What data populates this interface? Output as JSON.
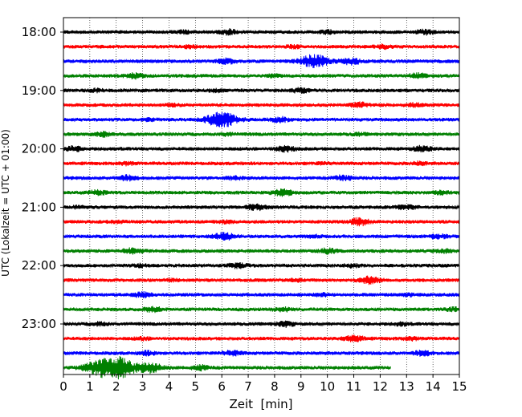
{
  "chart_data": {
    "type": "line",
    "title": "",
    "xlabel": "Zeit  [min]",
    "ylabel": "UTC (Lokalzeit = UTC + 01:00)",
    "xlim": [
      0,
      15
    ],
    "x_ticks": [
      0,
      1,
      2,
      3,
      4,
      5,
      6,
      7,
      8,
      9,
      10,
      11,
      12,
      13,
      14,
      15
    ],
    "y_ticks": [
      "18:00",
      "19:00",
      "20:00",
      "21:00",
      "22:00",
      "23:00"
    ],
    "grid": "vertical dotted at each minute",
    "trace_interval_minutes": 15,
    "trace_colors": [
      "#000000",
      "#ff0000",
      "#0000ff",
      "#008000"
    ],
    "series": [
      {
        "start": "18:00",
        "color": "#000000",
        "bursts": [
          {
            "t": 6.3,
            "a": 0.6
          },
          {
            "t": 13.7,
            "a": 0.6
          },
          {
            "t": 10.0,
            "a": 0.4
          },
          {
            "t": 4.6,
            "a": 0.35
          }
        ]
      },
      {
        "start": "18:15",
        "color": "#ff0000",
        "bursts": [
          {
            "t": 12.1,
            "a": 0.45
          },
          {
            "t": 8.7,
            "a": 0.3
          },
          {
            "t": 4.8,
            "a": 0.3
          }
        ]
      },
      {
        "start": "18:30",
        "color": "#0000ff",
        "bursts": [
          {
            "t": 9.5,
            "a": 1.7
          },
          {
            "t": 10.9,
            "a": 0.8
          },
          {
            "t": 6.2,
            "a": 0.7
          }
        ]
      },
      {
        "start": "18:45",
        "color": "#008000",
        "bursts": [
          {
            "t": 2.7,
            "a": 0.6
          },
          {
            "t": 13.4,
            "a": 0.6
          },
          {
            "t": 8.0,
            "a": 0.3
          }
        ]
      },
      {
        "start": "19:00",
        "color": "#000000",
        "bursts": [
          {
            "t": 9.0,
            "a": 0.6
          },
          {
            "t": 5.8,
            "a": 0.3
          },
          {
            "t": 1.2,
            "a": 0.35
          }
        ]
      },
      {
        "start": "19:15",
        "color": "#ff0000",
        "bursts": [
          {
            "t": 11.2,
            "a": 0.6
          },
          {
            "t": 13.3,
            "a": 0.4
          },
          {
            "t": 4.1,
            "a": 0.3
          }
        ]
      },
      {
        "start": "19:30",
        "color": "#0000ff",
        "bursts": [
          {
            "t": 6.0,
            "a": 2.0
          },
          {
            "t": 8.2,
            "a": 0.6
          },
          {
            "t": 3.2,
            "a": 0.3
          }
        ]
      },
      {
        "start": "19:45",
        "color": "#008000",
        "bursts": [
          {
            "t": 1.5,
            "a": 0.5
          },
          {
            "t": 6.2,
            "a": 0.3
          },
          {
            "t": 11.2,
            "a": 0.3
          }
        ]
      },
      {
        "start": "20:00",
        "color": "#000000",
        "bursts": [
          {
            "t": 0.4,
            "a": 0.6
          },
          {
            "t": 8.4,
            "a": 0.7
          },
          {
            "t": 13.6,
            "a": 0.7
          }
        ]
      },
      {
        "start": "20:15",
        "color": "#ff0000",
        "bursts": [
          {
            "t": 2.4,
            "a": 0.35
          },
          {
            "t": 13.5,
            "a": 0.35
          },
          {
            "t": 9.8,
            "a": 0.2
          }
        ]
      },
      {
        "start": "20:30",
        "color": "#0000ff",
        "bursts": [
          {
            "t": 2.4,
            "a": 0.6
          },
          {
            "t": 10.6,
            "a": 0.6
          },
          {
            "t": 6.5,
            "a": 0.35
          }
        ]
      },
      {
        "start": "20:45",
        "color": "#008000",
        "bursts": [
          {
            "t": 1.3,
            "a": 0.6
          },
          {
            "t": 8.3,
            "a": 0.8
          },
          {
            "t": 14.3,
            "a": 0.4
          }
        ]
      },
      {
        "start": "21:00",
        "color": "#000000",
        "bursts": [
          {
            "t": 7.3,
            "a": 0.7
          },
          {
            "t": 13.0,
            "a": 0.6
          },
          {
            "t": 0.6,
            "a": 0.3
          }
        ]
      },
      {
        "start": "21:15",
        "color": "#ff0000",
        "bursts": [
          {
            "t": 11.2,
            "a": 0.9
          },
          {
            "t": 6.2,
            "a": 0.3
          },
          {
            "t": 2.0,
            "a": 0.25
          }
        ]
      },
      {
        "start": "21:30",
        "color": "#0000ff",
        "bursts": [
          {
            "t": 6.1,
            "a": 0.9
          },
          {
            "t": 14.2,
            "a": 0.5
          },
          {
            "t": 9.5,
            "a": 0.3
          }
        ]
      },
      {
        "start": "21:45",
        "color": "#008000",
        "bursts": [
          {
            "t": 2.6,
            "a": 0.7
          },
          {
            "t": 10.0,
            "a": 0.6
          },
          {
            "t": 14.4,
            "a": 0.4
          }
        ]
      },
      {
        "start": "22:00",
        "color": "#000000",
        "bursts": [
          {
            "t": 6.6,
            "a": 0.6
          },
          {
            "t": 10.9,
            "a": 0.4
          },
          {
            "t": 2.9,
            "a": 0.3
          }
        ]
      },
      {
        "start": "22:15",
        "color": "#ff0000",
        "bursts": [
          {
            "t": 11.6,
            "a": 0.9
          },
          {
            "t": 8.8,
            "a": 0.3
          },
          {
            "t": 4.1,
            "a": 0.25
          }
        ]
      },
      {
        "start": "22:30",
        "color": "#0000ff",
        "bursts": [
          {
            "t": 3.0,
            "a": 0.6
          },
          {
            "t": 9.8,
            "a": 0.35
          },
          {
            "t": 13.1,
            "a": 0.3
          }
        ]
      },
      {
        "start": "22:45",
        "color": "#008000",
        "bursts": [
          {
            "t": 3.4,
            "a": 0.6
          },
          {
            "t": 8.3,
            "a": 0.5
          },
          {
            "t": 14.8,
            "a": 0.4
          }
        ]
      },
      {
        "start": "23:00",
        "color": "#000000",
        "bursts": [
          {
            "t": 8.4,
            "a": 0.6
          },
          {
            "t": 1.4,
            "a": 0.4
          },
          {
            "t": 12.8,
            "a": 0.35
          }
        ]
      },
      {
        "start": "23:15",
        "color": "#ff0000",
        "bursts": [
          {
            "t": 11.0,
            "a": 0.8
          },
          {
            "t": 13.2,
            "a": 0.4
          },
          {
            "t": 3.0,
            "a": 0.3
          }
        ]
      },
      {
        "start": "23:30",
        "color": "#0000ff",
        "bursts": [
          {
            "t": 6.4,
            "a": 0.6
          },
          {
            "t": 3.2,
            "a": 0.5
          },
          {
            "t": 13.6,
            "a": 0.6
          }
        ]
      },
      {
        "start": "23:45",
        "color": "#008000",
        "end_minute": 12.4,
        "bursts": [
          {
            "t": 2.1,
            "a": 2.8
          },
          {
            "t": 1.3,
            "a": 1.8
          },
          {
            "t": 3.3,
            "a": 1.2
          },
          {
            "t": 5.2,
            "a": 0.6
          }
        ]
      }
    ]
  }
}
